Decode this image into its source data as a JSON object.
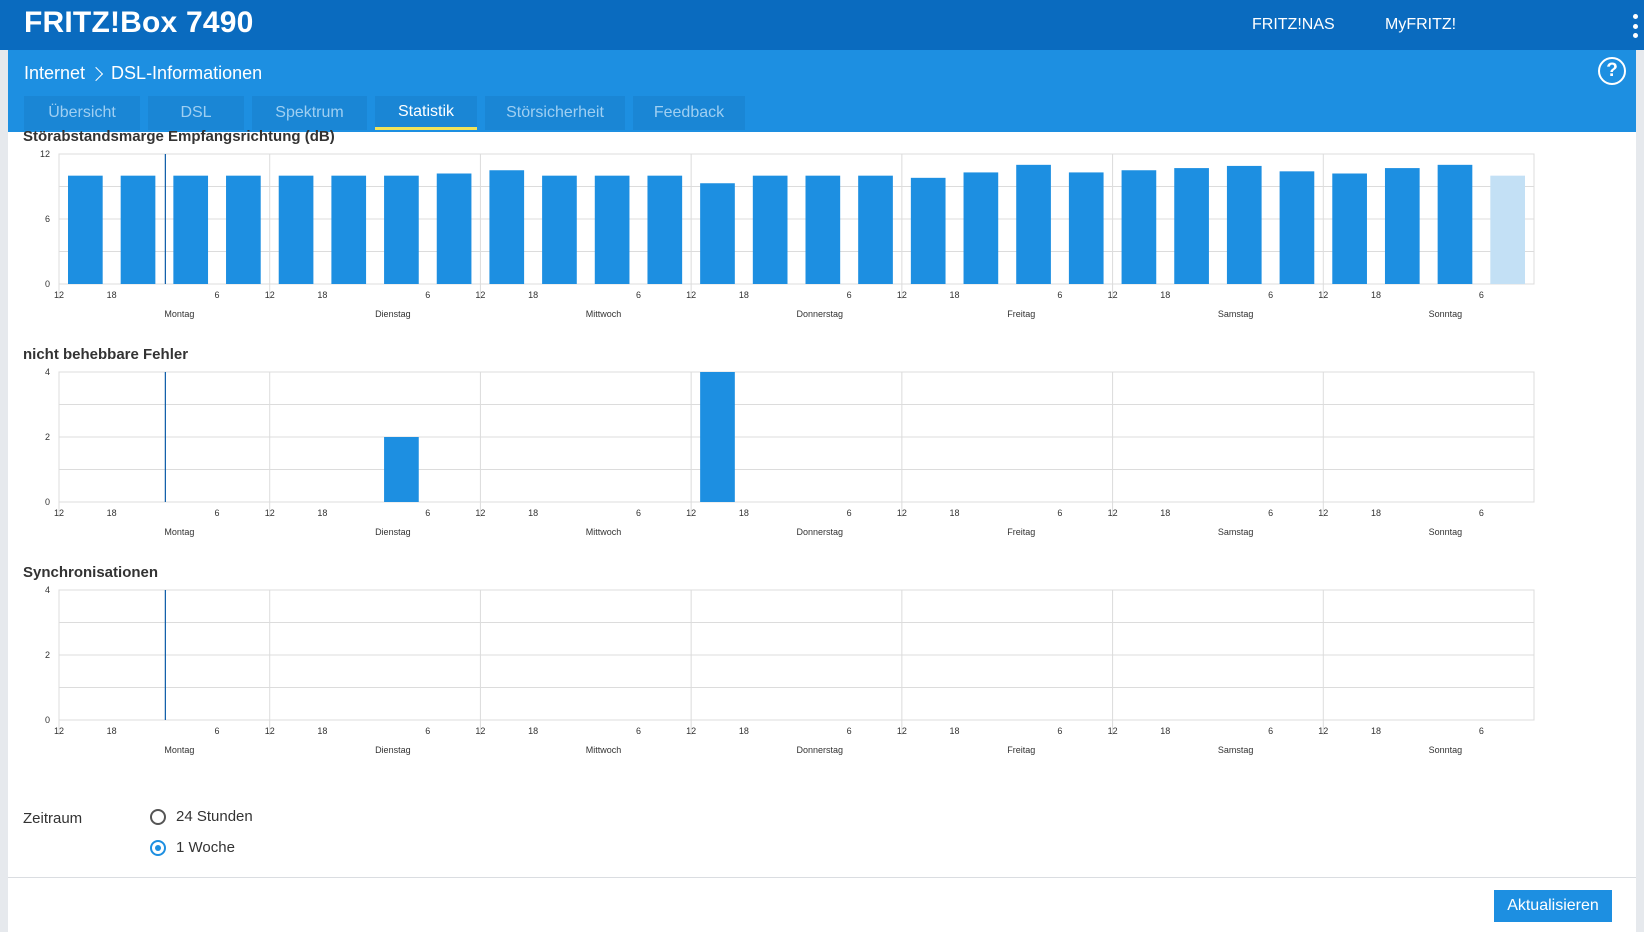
{
  "header": {
    "brand": "FRITZ!Box 7490",
    "links": [
      "FRITZ!NAS",
      "MyFRITZ!"
    ]
  },
  "breadcrumb": {
    "parent": "Internet",
    "current": "DSL-Informationen"
  },
  "tabs": [
    {
      "label": "Übersicht",
      "active": false
    },
    {
      "label": "DSL",
      "active": false
    },
    {
      "label": "Spektrum",
      "active": false
    },
    {
      "label": "Statistik",
      "active": true
    },
    {
      "label": "Störsicherheit",
      "active": false
    },
    {
      "label": "Feedback",
      "active": false
    }
  ],
  "colors": {
    "bar": "#1d8fe1",
    "bar_current": "#c3e0f5",
    "grid": "#dcdcdc",
    "marker": "#0a5aa6"
  },
  "chart_data": [
    {
      "type": "bar",
      "title": "Störabstandsmarge Empfangsrichtung (dB)",
      "ylim": [
        0,
        12
      ],
      "yticks": [
        "0",
        "6",
        "12"
      ],
      "x_tick_labels": [
        "12",
        "18",
        "6",
        "12",
        "18",
        "6",
        "12",
        "18",
        "6",
        "12",
        "18",
        "6",
        "12",
        "18",
        "6",
        "12",
        "18",
        "6",
        "12",
        "18",
        "6"
      ],
      "day_labels": [
        "Montag",
        "Dienstag",
        "Mittwoch",
        "Donnerstag",
        "Freitag",
        "Samstag",
        "Sonntag"
      ],
      "values": [
        10,
        10,
        10,
        10,
        10,
        10,
        10,
        10.2,
        10.5,
        10,
        10,
        10,
        9.3,
        10,
        10,
        10,
        9.8,
        10.3,
        11,
        10.3,
        10.5,
        10.7,
        10.9,
        10.4,
        10.2,
        10.7,
        11,
        10
      ],
      "current_bar_index": 27
    },
    {
      "type": "bar",
      "title": "nicht behebbare Fehler",
      "ylim": [
        0,
        4
      ],
      "yticks": [
        "0",
        "2",
        "4"
      ],
      "x_tick_labels": [
        "12",
        "18",
        "6",
        "12",
        "18",
        "6",
        "12",
        "18",
        "6",
        "12",
        "18",
        "6",
        "12",
        "18",
        "6",
        "12",
        "18",
        "6",
        "12",
        "18",
        "6"
      ],
      "day_labels": [
        "Montag",
        "Dienstag",
        "Mittwoch",
        "Donnerstag",
        "Freitag",
        "Samstag",
        "Sonntag"
      ],
      "values": [
        0,
        0,
        0,
        0,
        0,
        0,
        2,
        0,
        0,
        0,
        0,
        0,
        4,
        0,
        0,
        0,
        0,
        0,
        0,
        0,
        0,
        0,
        0,
        0,
        0,
        0,
        0,
        0
      ]
    },
    {
      "type": "bar",
      "title": "Synchronisationen",
      "ylim": [
        0,
        4
      ],
      "yticks": [
        "0",
        "2",
        "4"
      ],
      "x_tick_labels": [
        "12",
        "18",
        "6",
        "12",
        "18",
        "6",
        "12",
        "18",
        "6",
        "12",
        "18",
        "6",
        "12",
        "18",
        "6",
        "12",
        "18",
        "6",
        "12",
        "18",
        "6"
      ],
      "day_labels": [
        "Montag",
        "Dienstag",
        "Mittwoch",
        "Donnerstag",
        "Freitag",
        "Samstag",
        "Sonntag"
      ],
      "values": [
        0,
        0,
        0,
        0,
        0,
        0,
        0,
        0,
        0,
        0,
        0,
        0,
        0,
        0,
        0,
        0,
        0,
        0,
        0,
        0,
        0,
        0,
        0,
        0,
        0,
        0,
        0,
        0
      ]
    }
  ],
  "zeitraum": {
    "label": "Zeitraum",
    "options": [
      {
        "label": "24 Stunden",
        "checked": false
      },
      {
        "label": "1 Woche",
        "checked": true
      }
    ]
  },
  "actions": {
    "update_label": "Aktualisieren"
  }
}
